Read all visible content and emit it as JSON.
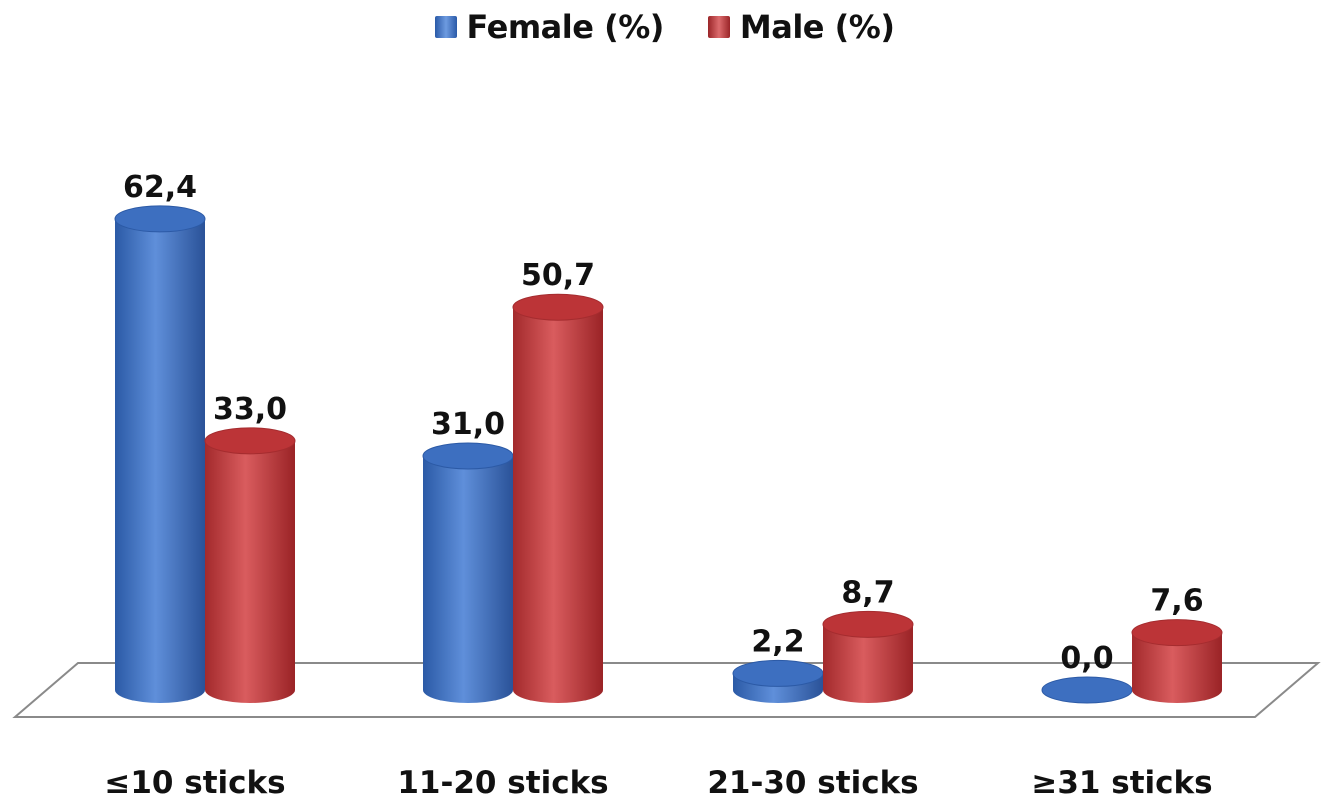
{
  "chart_data": {
    "type": "bar",
    "categories": [
      "≤10 sticks",
      "11-20 sticks",
      "21-30 sticks",
      "≥31 sticks"
    ],
    "series": [
      {
        "name": "Female (%)",
        "values": [
          62.4,
          31.0,
          2.2,
          0.0
        ],
        "labels": [
          "62,4",
          "31,0",
          "2,2",
          "0,0"
        ],
        "color": "#3f74c7"
      },
      {
        "name": "Male (%)",
        "values": [
          33.0,
          50.7,
          8.7,
          7.6
        ],
        "labels": [
          "33,0",
          "50,7",
          "8,7",
          "7,6"
        ],
        "color": "#c0393c"
      }
    ],
    "title": "",
    "xlabel": "",
    "ylabel": "",
    "ylim": [
      0,
      70
    ],
    "style": "3d-cylinder",
    "legend": "top-center",
    "grid": false
  }
}
